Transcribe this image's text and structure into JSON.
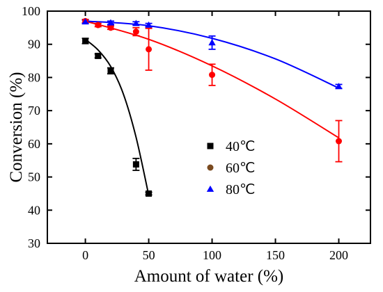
{
  "chart_data": {
    "type": "scatter",
    "title": "",
    "xlabel": "Amount of water (%)",
    "ylabel": "Conversion  (%)",
    "xlim": [
      -30,
      225
    ],
    "ylim": [
      30,
      100
    ],
    "xticks": [
      0,
      50,
      100,
      150,
      200
    ],
    "yticks": [
      30,
      40,
      50,
      60,
      70,
      80,
      90,
      100
    ],
    "grid": false,
    "legend_position": "center-right",
    "series": [
      {
        "name": "40℃",
        "color": "#000000",
        "marker": "square",
        "x": [
          0,
          10,
          20,
          40,
          50
        ],
        "y": [
          91,
          86.5,
          82,
          53.8,
          45
        ],
        "yerr": [
          0.8,
          0.6,
          0.9,
          1.8,
          0.4
        ],
        "fit": {
          "x": [
            0,
            10,
            20,
            30,
            40,
            50
          ],
          "y": [
            91.5,
            88.3,
            83.3,
            75,
            62,
            44.5
          ]
        }
      },
      {
        "name": "60℃",
        "color": "#ff0000",
        "legend_color": "#7a4a1f",
        "marker": "circle",
        "x": [
          0,
          10,
          20,
          40,
          50,
          100,
          200
        ],
        "y": [
          97,
          95.8,
          95,
          93.8,
          88.5,
          80.8,
          60.8
        ],
        "yerr": [
          0.5,
          0.5,
          0.5,
          1.2,
          6.3,
          3.2,
          6.2
        ],
        "fit": {
          "x": [
            0,
            50,
            100,
            150,
            200
          ],
          "y": [
            97,
            91.5,
            83.5,
            73.5,
            61.8
          ]
        }
      },
      {
        "name": "80℃",
        "color": "#0000ff",
        "marker": "triangle",
        "x": [
          0,
          20,
          40,
          50,
          100,
          200
        ],
        "y": [
          96.8,
          96.5,
          96.3,
          95.8,
          90.5,
          77.3
        ],
        "yerr": [
          0.5,
          0.5,
          0.5,
          0.5,
          2,
          0.6
        ],
        "fit": {
          "x": [
            0,
            50,
            100,
            150,
            200
          ],
          "y": [
            97,
            95.6,
            91.8,
            85.6,
            76.8
          ]
        }
      }
    ]
  }
}
